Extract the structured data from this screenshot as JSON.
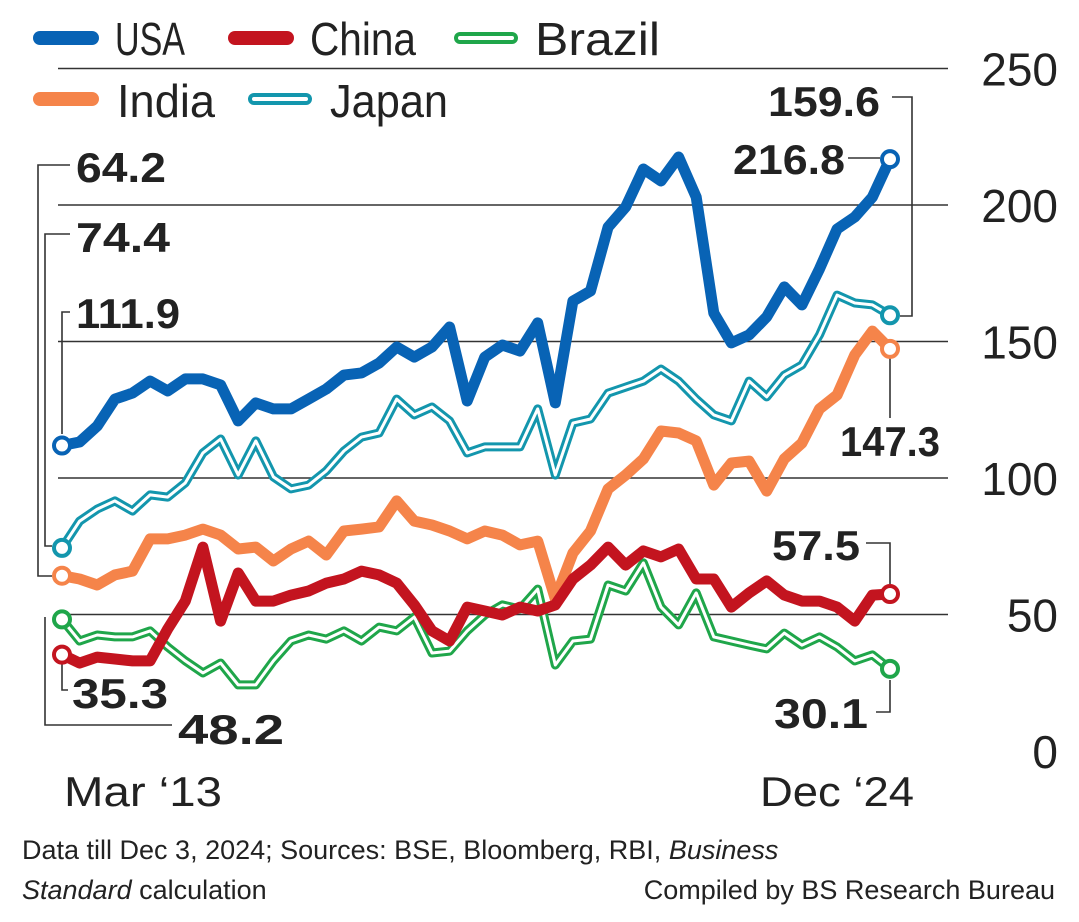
{
  "chart_data": {
    "type": "line",
    "title": "",
    "xlabel": "",
    "ylabel": "",
    "ylim": [
      0,
      250
    ],
    "yticks": [
      0,
      50,
      100,
      150,
      200,
      250
    ],
    "grid": "horizontal",
    "legend_position": "top-left",
    "x_tick_labels": [
      "Mar ‘13",
      "Dec ‘24"
    ],
    "x_range": [
      "Mar 2013",
      "Dec 2024"
    ],
    "x_frequency": "quarterly",
    "series": [
      {
        "name": "USA",
        "color": "#0863b5",
        "style": "solid",
        "values": [
          111.9,
          113.2,
          119.0,
          128.9,
          131.1,
          135.5,
          131.9,
          136.3,
          136.3,
          134.1,
          120.9,
          127.5,
          125.3,
          125.3,
          128.9,
          132.6,
          137.7,
          138.5,
          142.1,
          148.0,
          144.3,
          148.0,
          155.3,
          128.2,
          144.3,
          148.7,
          146.5,
          156.8,
          127.5,
          164.8,
          168.5,
          191.9,
          199.3,
          213.2,
          208.8,
          217.6,
          202.9,
          160.4,
          149.5,
          152.4,
          159.0,
          170.0,
          163.4,
          176.6,
          191.2,
          195.6,
          202.9,
          216.8
        ]
      },
      {
        "name": "China",
        "color": "#c3141f",
        "style": "solid",
        "values": [
          35.3,
          32.2,
          34.4,
          33.7,
          33.0,
          33.0,
          44.7,
          54.9,
          74.7,
          47.6,
          65.2,
          54.9,
          54.9,
          57.1,
          58.6,
          61.5,
          63.0,
          65.9,
          64.5,
          61.5,
          53.5,
          44.0,
          40.3,
          52.7,
          51.3,
          49.8,
          52.7,
          51.3,
          53.5,
          63.0,
          68.1,
          74.7,
          68.1,
          73.3,
          71.1,
          74.0,
          63.0,
          63.0,
          52.7,
          57.9,
          62.3,
          57.1,
          54.9,
          54.9,
          52.7,
          47.6,
          57.1,
          57.5
        ]
      },
      {
        "name": "Brazil",
        "color": "#1fa64a",
        "style": "double",
        "values": [
          48.2,
          40.3,
          42.5,
          41.8,
          41.8,
          44.0,
          38.1,
          33.0,
          28.6,
          32.2,
          24.2,
          24.2,
          33.0,
          40.3,
          42.5,
          41.0,
          44.0,
          40.3,
          45.4,
          44.0,
          49.1,
          35.9,
          36.6,
          44.0,
          49.8,
          53.5,
          52.0,
          59.3,
          31.5,
          40.3,
          41.0,
          60.8,
          58.6,
          68.9,
          52.7,
          46.2,
          57.9,
          41.8,
          40.3,
          38.8,
          37.4,
          43.2,
          38.8,
          41.8,
          38.1,
          33.0,
          35.2,
          30.1
        ]
      },
      {
        "name": "India",
        "color": "#f5844a",
        "style": "solid",
        "values": [
          64.2,
          63.0,
          60.8,
          64.5,
          65.9,
          77.7,
          77.7,
          79.1,
          81.3,
          79.1,
          74.0,
          74.7,
          69.6,
          74.0,
          76.9,
          71.8,
          80.6,
          81.3,
          82.1,
          91.6,
          84.2,
          82.8,
          80.6,
          77.7,
          80.6,
          79.1,
          75.5,
          76.9,
          55.7,
          72.5,
          80.6,
          96.0,
          101.1,
          107.0,
          117.2,
          116.5,
          113.6,
          97.4,
          105.5,
          106.2,
          95.2,
          107.0,
          112.8,
          125.3,
          130.4,
          145.1,
          153.8,
          147.3
        ]
      },
      {
        "name": "Japan",
        "color": "#1396ad",
        "style": "double",
        "values": [
          74.4,
          84.2,
          88.6,
          91.6,
          87.9,
          93.8,
          93.0,
          98.2,
          109.2,
          114.3,
          101.1,
          113.6,
          100.4,
          96.0,
          97.4,
          102.6,
          109.9,
          115.0,
          116.5,
          128.9,
          123.1,
          126.0,
          120.9,
          109.2,
          111.4,
          111.4,
          111.4,
          125.3,
          101.1,
          120.1,
          121.6,
          131.1,
          133.3,
          135.5,
          139.9,
          135.5,
          128.9,
          123.1,
          120.9,
          135.5,
          129.7,
          137.7,
          141.4,
          152.4,
          167.0,
          164.1,
          163.4,
          159.6
        ]
      }
    ],
    "annotations": {
      "usa_start": "111.9",
      "usa_end": "216.8",
      "china_start": "35.3",
      "china_end": "57.5",
      "brazil_start": "48.2",
      "brazil_end": "30.1",
      "india_start": "64.2",
      "india_end": "147.3",
      "japan_start": "74.4",
      "japan_end": "159.6"
    }
  },
  "footer": {
    "line1_prefix": "Data till Dec 3, 2024; Sources: BSE, Bloomberg, RBI, ",
    "line1_italic": "Business",
    "line2_italic": "Standard",
    "line2_suffix": " calculation",
    "credit": "Compiled by BS Research Bureau"
  }
}
